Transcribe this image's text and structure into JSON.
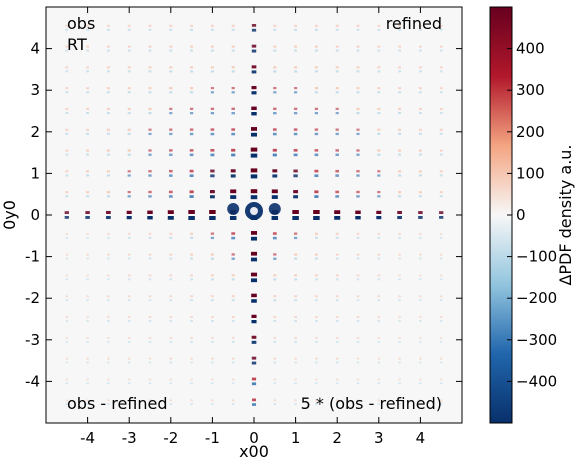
{
  "chart_data": {
    "type": "heatmap",
    "xlabel": "x00",
    "ylabel": "0y0",
    "colorbar_label": "ΔPDF density a.u.",
    "xlim": [
      -5,
      5
    ],
    "ylim": [
      -5,
      5
    ],
    "x_ticks": [
      -4,
      -3,
      -2,
      -1,
      0,
      1,
      2,
      3,
      4
    ],
    "y_ticks": [
      -4,
      -3,
      -2,
      -1,
      0,
      1,
      2,
      3,
      4
    ],
    "colorbar_range": [
      -500,
      500
    ],
    "colorbar_ticks": [
      -400,
      -300,
      -200,
      -100,
      0,
      100,
      200,
      300,
      400
    ],
    "colormap": "RdBu_r",
    "colormap_stops": [
      "#08306b",
      "#2166ac",
      "#92c5de",
      "#f7f7f7",
      "#f4a582",
      "#b2182b",
      "#67001f"
    ],
    "grid": false,
    "background": "#f7f7f7",
    "lattice_spacing": 0.5,
    "quadrant_annotations": {
      "top_left": [
        "obs",
        "RT"
      ],
      "top_right": "refined",
      "bottom_left": "obs - refined",
      "bottom_right": "5 * (obs - refined)"
    }
  }
}
